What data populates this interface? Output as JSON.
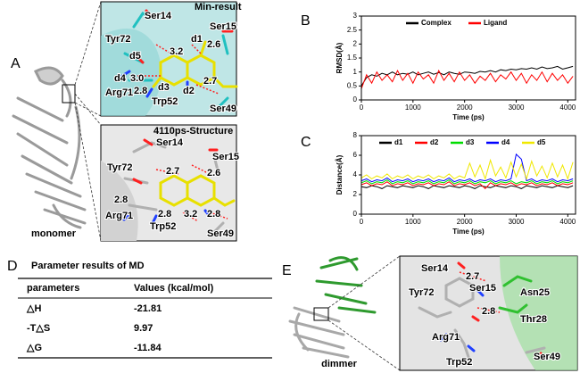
{
  "panel_a": {
    "letter": "A",
    "caption": "monomer",
    "top": {
      "title": "Min-result",
      "labels": [
        "Ser14",
        "Ser15",
        "Tyr72",
        "d1",
        "3.2",
        "2.6",
        "d5",
        "d4",
        "3.0",
        "2.8",
        "d3",
        "Arg71",
        "2.7",
        "d2",
        "Trp52",
        "Ser49"
      ]
    },
    "bottom": {
      "title": "4110ps-Structure",
      "labels": [
        "Ser14",
        "Ser15",
        "Tyr72",
        "2.7",
        "2.6",
        "2.8",
        "Arg71",
        "2.8",
        "Trp52",
        "3.2",
        "2.8",
        "Ser49"
      ]
    }
  },
  "panel_b": {
    "letter": "B"
  },
  "panel_c": {
    "letter": "C"
  },
  "chart_data": [
    {
      "type": "line",
      "xlabel": "Time (ps)",
      "ylabel": "RMSD(Å)",
      "xlim": [
        0,
        4150
      ],
      "ylim": [
        0,
        3
      ],
      "xticks": [
        0,
        1000,
        2000,
        3000,
        4000
      ],
      "yticks": [
        0,
        0.5,
        1,
        1.5,
        2,
        2.5,
        3
      ],
      "x": [
        0,
        100,
        200,
        300,
        400,
        500,
        600,
        700,
        800,
        900,
        1000,
        1100,
        1200,
        1300,
        1400,
        1500,
        1600,
        1700,
        1800,
        1900,
        2000,
        2100,
        2200,
        2300,
        2400,
        2500,
        2600,
        2700,
        2800,
        2900,
        3000,
        3100,
        3200,
        3300,
        3400,
        3500,
        3600,
        3700,
        3800,
        3900,
        4000,
        4100
      ],
      "series": [
        {
          "name": "Complex",
          "color": "#000000",
          "values": [
            0.5,
            0.8,
            0.9,
            0.85,
            0.95,
            0.9,
            1.0,
            0.9,
            0.95,
            0.92,
            1.0,
            0.9,
            0.95,
            1.0,
            0.92,
            0.98,
            0.9,
            1.0,
            0.95,
            0.92,
            1.0,
            0.98,
            0.95,
            1.02,
            1.0,
            1.05,
            1.0,
            1.08,
            1.05,
            1.1,
            1.08,
            1.12,
            1.1,
            1.15,
            1.1,
            1.18,
            1.12,
            1.15,
            1.2,
            1.1,
            1.15,
            1.2
          ]
        },
        {
          "name": "Ligand",
          "color": "#ff0000",
          "values": [
            0.4,
            0.9,
            0.6,
            1.0,
            0.7,
            0.9,
            0.65,
            1.05,
            0.7,
            0.95,
            0.6,
            1.0,
            0.75,
            0.9,
            0.6,
            1.05,
            0.7,
            0.95,
            0.65,
            1.0,
            0.7,
            0.9,
            0.6,
            0.85,
            0.7,
            0.95,
            0.65,
            0.9,
            0.75,
            1.0,
            0.7,
            0.95,
            0.6,
            0.9,
            0.7,
            1.0,
            0.65,
            0.95,
            0.7,
            0.9,
            0.6,
            0.85
          ]
        }
      ]
    },
    {
      "type": "line",
      "xlabel": "Time (ps)",
      "ylabel": "Distance(Å)",
      "xlim": [
        0,
        4150
      ],
      "ylim": [
        0,
        8
      ],
      "xticks": [
        0,
        1000,
        2000,
        3000,
        4000
      ],
      "yticks": [
        0,
        2,
        4,
        6,
        8
      ],
      "x": [
        0,
        100,
        200,
        300,
        400,
        500,
        600,
        700,
        800,
        900,
        1000,
        1100,
        1200,
        1300,
        1400,
        1500,
        1600,
        1700,
        1800,
        1900,
        2000,
        2100,
        2200,
        2300,
        2400,
        2500,
        2600,
        2700,
        2800,
        2900,
        3000,
        3100,
        3200,
        3300,
        3400,
        3500,
        3600,
        3700,
        3800,
        3900,
        4000,
        4100
      ],
      "series": [
        {
          "name": "d1",
          "color": "#000000",
          "values": [
            2.8,
            2.7,
            2.9,
            2.8,
            2.6,
            2.9,
            2.8,
            2.7,
            2.9,
            2.8,
            2.7,
            2.9,
            2.8,
            2.6,
            2.9,
            2.8,
            2.7,
            2.9,
            2.8,
            2.7,
            2.9,
            2.8,
            2.6,
            2.9,
            2.8,
            2.7,
            2.9,
            2.8,
            2.7,
            2.9,
            2.8,
            2.6,
            2.9,
            2.8,
            2.7,
            2.9,
            2.8,
            2.7,
            2.9,
            2.8,
            2.7,
            2.9
          ]
        },
        {
          "name": "d2",
          "color": "#ff0000",
          "values": [
            3.0,
            3.2,
            2.9,
            3.1,
            3.0,
            3.3,
            2.9,
            3.1,
            3.0,
            3.2,
            2.9,
            3.1,
            3.0,
            3.2,
            2.9,
            3.1,
            3.0,
            3.3,
            2.9,
            3.1,
            3.0,
            3.2,
            2.9,
            3.1,
            2.6,
            3.2,
            2.9,
            3.1,
            3.0,
            3.2,
            2.9,
            3.1,
            3.0,
            3.2,
            2.9,
            3.1,
            3.0,
            3.2,
            2.9,
            3.1,
            3.0,
            3.2
          ]
        },
        {
          "name": "d3",
          "color": "#00dd00",
          "values": [
            3.2,
            3.4,
            3.1,
            3.3,
            3.2,
            3.5,
            3.1,
            3.3,
            3.2,
            3.4,
            3.1,
            3.3,
            3.2,
            3.4,
            3.1,
            3.3,
            3.2,
            3.5,
            3.1,
            3.3,
            3.2,
            3.4,
            3.1,
            3.3,
            3.2,
            3.4,
            3.1,
            3.3,
            3.2,
            3.4,
            3.1,
            3.3,
            3.2,
            3.4,
            3.1,
            3.3,
            3.2,
            3.4,
            3.1,
            3.3,
            3.2,
            3.4
          ]
        },
        {
          "name": "d4",
          "color": "#0000ff",
          "values": [
            3.4,
            3.6,
            3.3,
            3.5,
            3.4,
            3.7,
            3.3,
            3.5,
            3.4,
            3.6,
            3.3,
            3.5,
            3.4,
            3.6,
            3.3,
            3.5,
            3.4,
            3.7,
            3.3,
            3.5,
            3.4,
            3.6,
            3.3,
            3.5,
            3.4,
            3.6,
            3.3,
            3.5,
            3.4,
            3.6,
            6.1,
            5.6,
            3.4,
            3.6,
            3.3,
            3.5,
            3.4,
            3.6,
            3.3,
            3.5,
            3.4,
            3.6
          ]
        },
        {
          "name": "d5",
          "color": "#f0e800",
          "values": [
            3.7,
            4.0,
            3.6,
            3.9,
            3.7,
            4.1,
            3.6,
            3.9,
            3.7,
            4.0,
            3.6,
            3.9,
            3.7,
            4.0,
            3.6,
            3.9,
            3.7,
            4.1,
            3.6,
            3.9,
            3.7,
            5.2,
            3.8,
            5.0,
            3.6,
            5.5,
            3.9,
            4.8,
            3.7,
            5.3,
            3.8,
            5.1,
            3.6,
            5.4,
            3.9,
            4.9,
            3.7,
            5.2,
            3.8,
            5.0,
            3.6,
            5.3
          ]
        }
      ]
    }
  ],
  "table": {
    "letter": "D",
    "title": "Parameter results of MD",
    "header": [
      "parameters",
      "Values (kcal/mol)"
    ],
    "rows": [
      [
        "△H",
        "-21.81"
      ],
      [
        "-T△S",
        "9.97"
      ],
      [
        "△G",
        "-11.84"
      ]
    ]
  },
  "panel_e": {
    "letter": "E",
    "caption": "dimmer",
    "labels": [
      "Ser14",
      "2.7",
      "Ser15",
      "Asn25",
      "Tyr72",
      "2.8",
      "Thr28",
      "Arg71",
      "Trp52",
      "Ser49"
    ]
  }
}
